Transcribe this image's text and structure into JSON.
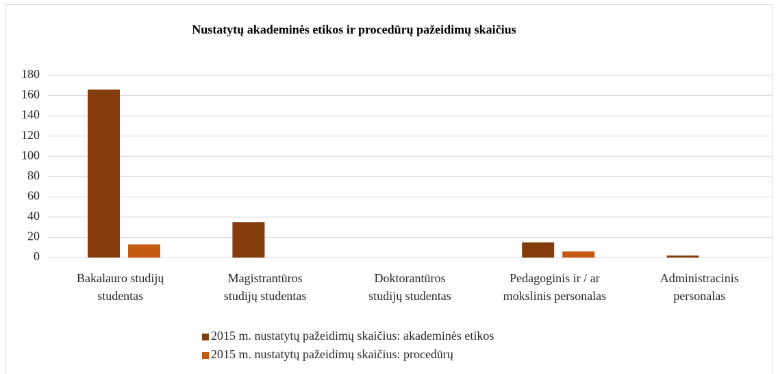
{
  "chart_data": {
    "type": "bar",
    "title": "Nustatytų akademinės etikos ir procedūrų pažeidimų skaičius",
    "categories": [
      [
        "Bakalauro studijų",
        "studentas"
      ],
      [
        "Magistrantūros",
        "studijų studentas"
      ],
      [
        "Doktorantūros",
        "studijų studentas"
      ],
      [
        "Pedagoginis ir / ar",
        "mokslinis personalas"
      ],
      [
        "Administracinis",
        "personalas"
      ]
    ],
    "series": [
      {
        "name": "2015 m. nustatytų pažeidimų skaičius: akademinės etikos",
        "color": "#843c0c",
        "values": [
          166,
          35,
          0,
          15,
          2
        ]
      },
      {
        "name": "2015 m. nustatytų pažeidimų skaičius: procedūrų",
        "color": "#c55a11",
        "values": [
          13,
          0,
          0,
          6,
          0
        ]
      }
    ],
    "ylim": [
      0,
      180
    ],
    "yticks": [
      0,
      20,
      40,
      60,
      80,
      100,
      120,
      140,
      160,
      180
    ],
    "grid": true,
    "legend": "bottom"
  }
}
